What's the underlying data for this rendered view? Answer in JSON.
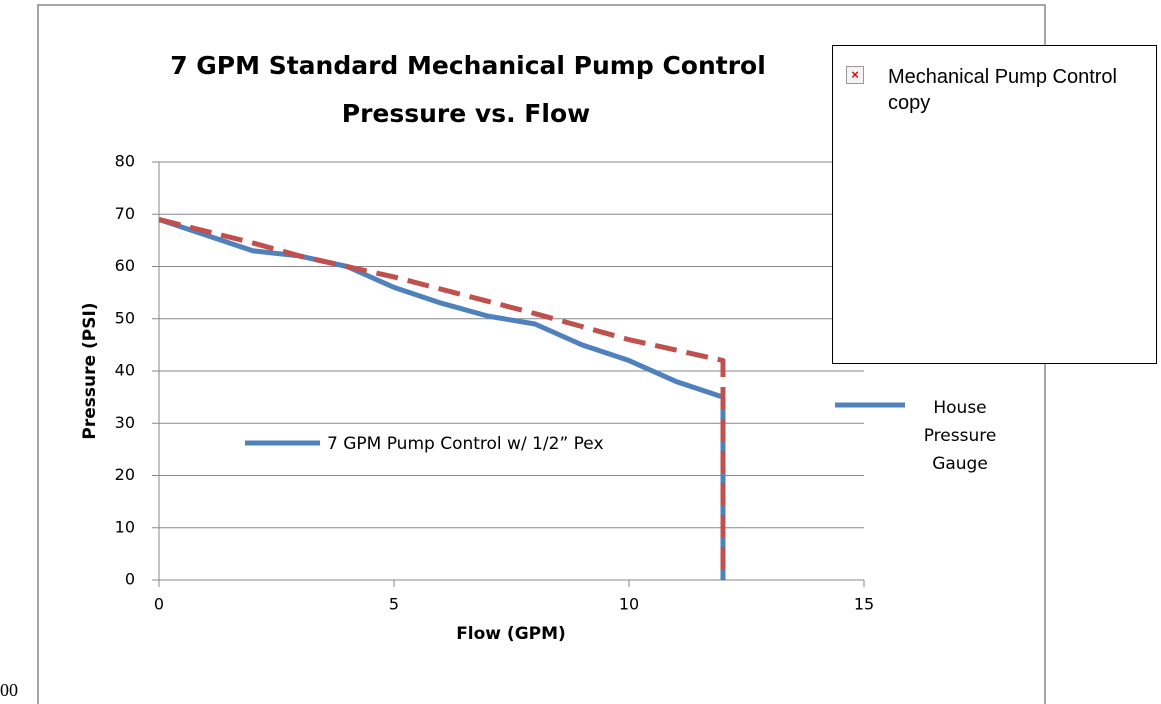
{
  "chart_data": {
    "type": "line",
    "title": "7 GPM Standard Mechanical Pump Control",
    "subtitle": "Pressure vs. Flow",
    "x_label": "Flow (GPM)",
    "y_label": "Pressure (PSI)",
    "annotation": "7 GPM Pump Control w/ 1/2” Pex",
    "annotation_color": "#4f81bd",
    "xlim": [
      0,
      15
    ],
    "xticks": [
      0,
      5,
      10,
      15
    ],
    "ylim": [
      0,
      80
    ],
    "yticks": [
      0,
      10,
      20,
      30,
      40,
      50,
      60,
      70,
      80
    ],
    "grid": true,
    "legend": "right",
    "series": [
      {
        "name": "House Pressure Gauge",
        "color": "#4f81bd",
        "style": "solid",
        "x": [
          0,
          1,
          2,
          3,
          4,
          5,
          6,
          7,
          8,
          9,
          10,
          11,
          12,
          12
        ],
        "values": [
          69,
          66,
          63,
          62,
          60,
          56,
          53,
          50.5,
          49,
          45,
          42,
          38,
          35,
          0
        ]
      },
      {
        "color": "#c0504d",
        "style": "dashed",
        "x": [
          0,
          2,
          3,
          5,
          8,
          10,
          12,
          12
        ],
        "values": [
          69,
          64.5,
          62,
          58,
          51,
          46,
          42,
          0
        ]
      }
    ]
  },
  "broken_image": {
    "alt": "Mechanical Pump Control copy",
    "icon": "×"
  },
  "stray_text": "00"
}
